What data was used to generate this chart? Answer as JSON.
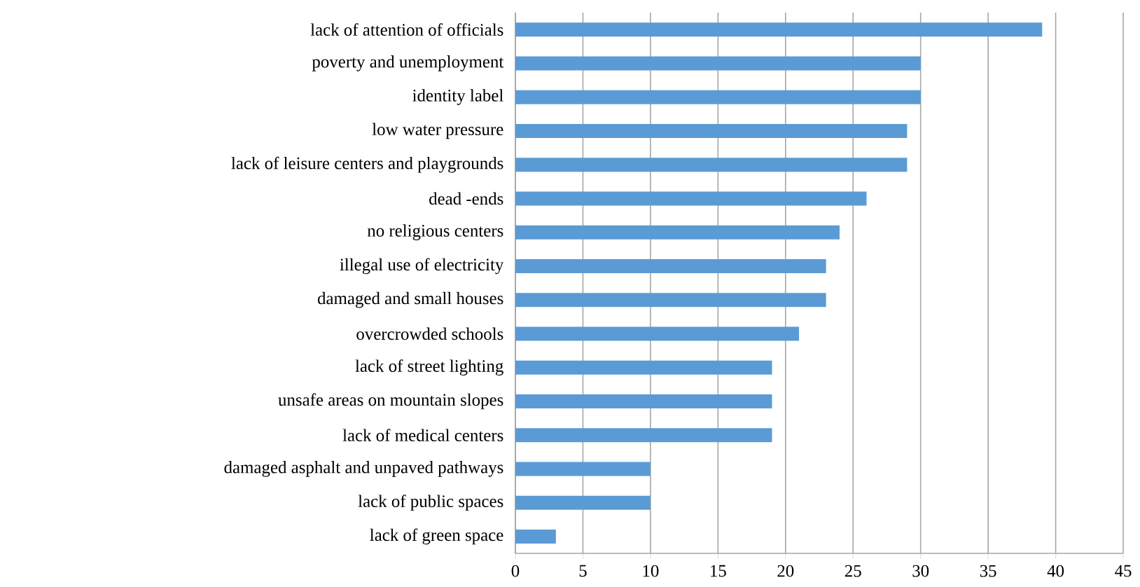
{
  "chart_data": {
    "type": "bar",
    "orientation": "horizontal",
    "categories": [
      "lack of attention of officials",
      "poverty and unemployment",
      "identity label",
      "low water pressure",
      "lack of leisure centers and playgrounds",
      "dead -ends",
      "no religious centers",
      "illegal use of electricity",
      "damaged and small houses",
      "overcrowded schools",
      "lack of street lighting",
      "unsafe areas on mountain slopes",
      "lack of medical centers",
      "damaged asphalt and unpaved pathways",
      "lack of public spaces",
      "lack of green space"
    ],
    "values": [
      39,
      30,
      30,
      29,
      29,
      26,
      24,
      23,
      23,
      21,
      19,
      19,
      19,
      10,
      10,
      3
    ],
    "color": "#5b9bd5",
    "xlim": [
      0,
      45
    ],
    "xticks": [
      0,
      5,
      10,
      15,
      20,
      25,
      30,
      35,
      40,
      45
    ],
    "grid": "x"
  }
}
